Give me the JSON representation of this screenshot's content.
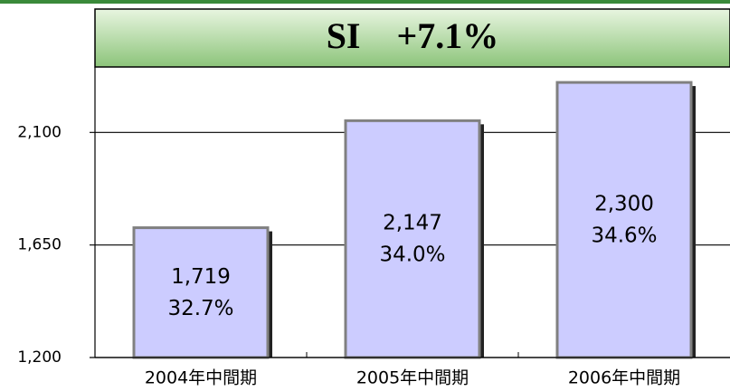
{
  "chart_data": {
    "type": "bar",
    "title": "SI　+7.1%",
    "categories": [
      "2004年中間期",
      "2005年中間期",
      "2006年中間期"
    ],
    "values": [
      1719,
      2147,
      2300
    ],
    "value_labels": [
      "1,719",
      "2,147",
      "2,300"
    ],
    "shares": [
      32.7,
      34.0,
      34.6
    ],
    "share_labels": [
      "32.7%",
      "34.0%",
      "34.6%"
    ],
    "color": "#ccccff",
    "ylim": [
      1200,
      2550
    ],
    "yticks": [
      {
        "value": 1200,
        "label": "1,200"
      },
      {
        "value": 1650,
        "label": "1,650"
      },
      {
        "value": 2100,
        "label": "2,100"
      }
    ],
    "grid": true
  }
}
